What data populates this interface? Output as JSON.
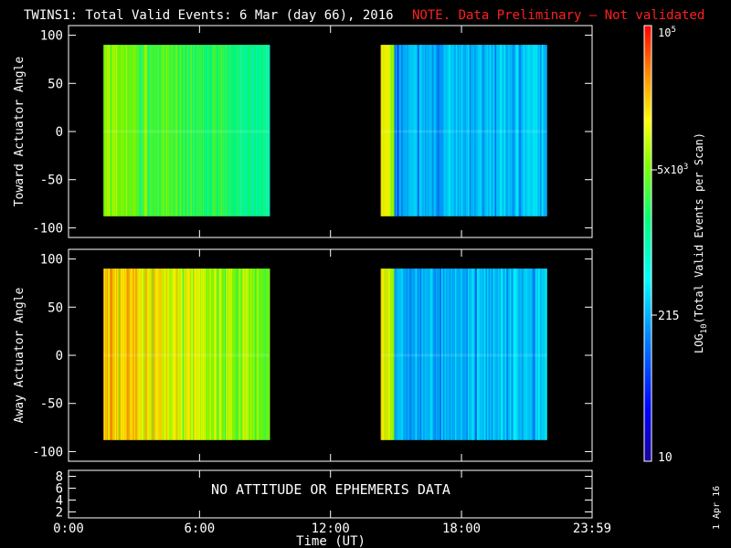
{
  "header": {
    "title": "TWINS1: Total Valid Events:  6 Mar (day  66), 2016",
    "note": "NOTE. Data Preliminary – Not validated",
    "note_color": "#ff2020"
  },
  "chart_data": [
    {
      "type": "heatmap",
      "panel": "top",
      "ylabel": "Toward Actuator Angle",
      "ylim": [
        -110,
        110
      ],
      "yticks": [
        "100",
        "50",
        "0",
        "-50",
        "-100"
      ],
      "x_range": [
        "0:00",
        "23:59"
      ],
      "blocks": [
        {
          "start": "1:36",
          "end": "9:12",
          "y_range": [
            -88,
            90
          ],
          "level": "mid-high",
          "colormap_values": "yellow-green to cyan, vertical streaks"
        },
        {
          "start": "14:18",
          "end": "21:54",
          "y_range": [
            -88,
            90
          ],
          "level": "mid",
          "colormap_values": "yellow-orange onset, then blue-cyan streaks"
        }
      ]
    },
    {
      "type": "heatmap",
      "panel": "middle",
      "ylabel": "Away Actuator Angle",
      "ylim": [
        -110,
        110
      ],
      "yticks": [
        "100",
        "50",
        "0",
        "-50",
        "-100"
      ],
      "x_range": [
        "0:00",
        "23:59"
      ],
      "blocks": [
        {
          "start": "1:36",
          "end": "9:12",
          "y_range": [
            -88,
            90
          ],
          "level": "high",
          "colormap_values": "orange to yellow-green streaks"
        },
        {
          "start": "14:18",
          "end": "21:54",
          "y_range": [
            -88,
            90
          ],
          "level": "mid",
          "colormap_values": "orange-red onset, then blue-cyan streaks"
        }
      ]
    },
    {
      "type": "table",
      "panel": "bottom",
      "yticks": [
        "8",
        "6",
        "4",
        "2"
      ],
      "message": "NO ATTITUDE OR EPHEMERIS DATA"
    }
  ],
  "x_axis": {
    "ticks": [
      "0:00",
      "6:00",
      "12:00",
      "18:00",
      "23:59"
    ],
    "label": "Time (UT)"
  },
  "colorbar": {
    "label": "LOG10(Total Valid Events per Scan)",
    "label_pre": "LOG",
    "label_sub": "10",
    "label_post": "(Total Valid Events per Scan)",
    "scale": "log",
    "min": 10,
    "max": 100000,
    "top_base": "10",
    "top_exp": "5",
    "mid_base": "5x10",
    "mid_exp": "3",
    "tick_215": "215",
    "bottom": "10"
  },
  "footer": {
    "date": "1 Apr 16"
  }
}
